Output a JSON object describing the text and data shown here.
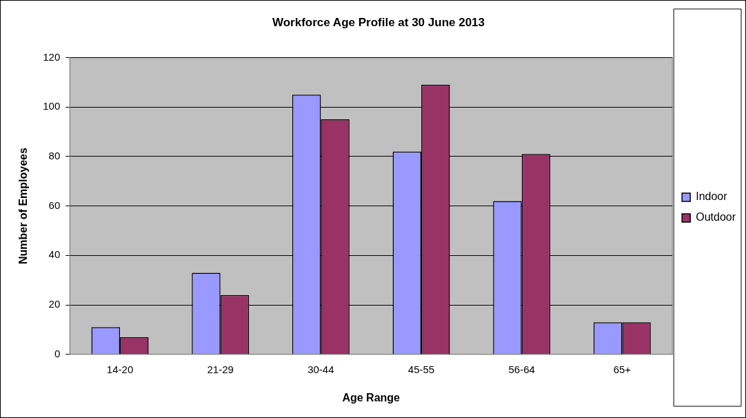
{
  "chart_data": {
    "type": "bar",
    "title": "Workforce Age Profile at 30 June 2013",
    "xlabel": "Age Range",
    "ylabel": "Number of Employees",
    "categories": [
      "14-20",
      "21-29",
      "30-44",
      "45-55",
      "56-64",
      "65+"
    ],
    "series": [
      {
        "name": "Indoor",
        "color": "#9999ff",
        "values": [
          11,
          33,
          105,
          82,
          62,
          13
        ]
      },
      {
        "name": "Outdoor",
        "color": "#993366",
        "values": [
          7,
          24,
          95,
          109,
          81,
          13
        ]
      }
    ],
    "ylim": [
      0,
      120
    ],
    "yticks": [
      0,
      20,
      40,
      60,
      80,
      100,
      120
    ],
    "grid": "y",
    "legend": "right"
  }
}
